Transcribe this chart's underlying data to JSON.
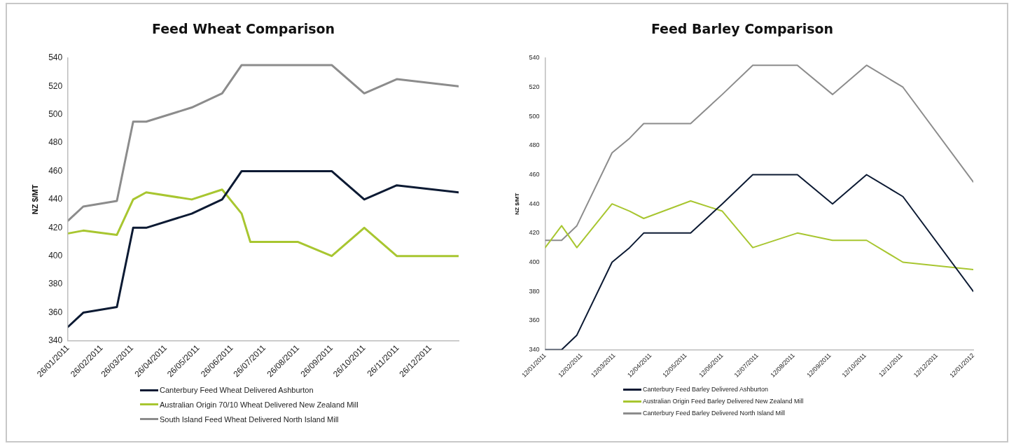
{
  "chart_data": [
    {
      "type": "line",
      "title": "Feed Wheat Comparison",
      "ylabel": "NZ $/MT",
      "x": [
        "2011-01-26",
        "2011-02-09",
        "2011-03-12",
        "2011-03-27",
        "2011-04-08",
        "2011-05-20",
        "2011-06-17",
        "2011-07-05",
        "2011-08-26",
        "2011-09-26",
        "2011-10-26",
        "2011-11-25",
        "2012-01-21"
      ],
      "xlim": [
        "2011-01-26",
        "2012-01-21"
      ],
      "xticks": [
        {
          "value": "2011-01-26",
          "label": "26/01/2011"
        },
        {
          "value": "2011-02-26",
          "label": "26/02/2011"
        },
        {
          "value": "2011-03-26",
          "label": "26/03/2011"
        },
        {
          "value": "2011-04-26",
          "label": "26/04/2011"
        },
        {
          "value": "2011-05-26",
          "label": "26/05/2011"
        },
        {
          "value": "2011-06-26",
          "label": "26/06/2011"
        },
        {
          "value": "2011-07-26",
          "label": "26/07/2011"
        },
        {
          "value": "2011-08-26",
          "label": "26/08/2011"
        },
        {
          "value": "2011-09-26",
          "label": "26/09/2011"
        },
        {
          "value": "2011-10-26",
          "label": "26/10/2011"
        },
        {
          "value": "2011-11-26",
          "label": "26/11/2011"
        },
        {
          "value": "2011-12-26",
          "label": "26/12/2011"
        }
      ],
      "ylim": [
        340,
        540
      ],
      "yticks": [
        340,
        360,
        380,
        400,
        420,
        440,
        460,
        480,
        500,
        520,
        540
      ],
      "legend": "bottom",
      "grid": false,
      "marker": "none",
      "series": [
        {
          "name": "Canterbury Feed Wheat Delivered Ashburton",
          "color": "#0c1a33",
          "values": [
            350,
            360,
            364,
            420,
            420,
            430,
            440,
            460,
            460,
            460,
            440,
            450,
            445
          ]
        },
        {
          "name": "Australian Origin 70/10 Wheat Delivered New Zealand Mill",
          "color": "#a8c630",
          "x": [
            "2011-01-26",
            "2011-02-09",
            "2011-03-12",
            "2011-03-27",
            "2011-04-08",
            "2011-05-20",
            "2011-06-17",
            "2011-07-05",
            "2011-07-13",
            "2011-08-26",
            "2011-09-26",
            "2011-10-26",
            "2011-11-25",
            "2012-01-21"
          ],
          "values": [
            416,
            418,
            415,
            440,
            445,
            440,
            447,
            430,
            410,
            410,
            400,
            420,
            400,
            400
          ]
        },
        {
          "name": "South Island Feed Wheat Delivered North Island Mill",
          "color": "#8c8c8c",
          "values": [
            425,
            435,
            439,
            495,
            495,
            505,
            515,
            535,
            535,
            535,
            515,
            525,
            520
          ]
        }
      ]
    },
    {
      "type": "line",
      "title": "Feed Barley Comparison",
      "ylabel": "NZ $/MT",
      "x": [
        "2011-01-12",
        "2011-01-26",
        "2011-02-08",
        "2011-03-10",
        "2011-03-25",
        "2011-04-06",
        "2011-05-16",
        "2011-06-12",
        "2011-07-08",
        "2011-08-15",
        "2011-09-14",
        "2011-10-13",
        "2011-11-13",
        "2012-01-12"
      ],
      "xlim": [
        "2011-01-12",
        "2012-01-12"
      ],
      "xticks": [
        {
          "value": "2011-01-12",
          "label": "12/01/2011"
        },
        {
          "value": "2011-02-12",
          "label": "12/02/2011"
        },
        {
          "value": "2011-03-12",
          "label": "12/03/2011"
        },
        {
          "value": "2011-04-12",
          "label": "12/04/2011"
        },
        {
          "value": "2011-05-12",
          "label": "12/05/2011"
        },
        {
          "value": "2011-06-12",
          "label": "12/06/2011"
        },
        {
          "value": "2011-07-12",
          "label": "12/07/2011"
        },
        {
          "value": "2011-08-12",
          "label": "12/08/2011"
        },
        {
          "value": "2011-09-12",
          "label": "12/09/2011"
        },
        {
          "value": "2011-10-12",
          "label": "12/10/2011"
        },
        {
          "value": "2011-11-12",
          "label": "12/11/2011"
        },
        {
          "value": "2011-12-12",
          "label": "12/12/2011"
        },
        {
          "value": "2012-01-12",
          "label": "12/01/2012"
        }
      ],
      "ylim": [
        340,
        540
      ],
      "yticks": [
        340,
        360,
        380,
        400,
        420,
        440,
        460,
        480,
        500,
        520,
        540
      ],
      "legend": "bottom",
      "grid": false,
      "marker": "none",
      "series": [
        {
          "name": "Canterbury Feed Barley Delivered Ashburton",
          "color": "#0c1a33",
          "values": [
            340,
            340,
            350,
            400,
            410,
            420,
            420,
            440,
            460,
            460,
            440,
            460,
            445,
            380
          ]
        },
        {
          "name": "Australian Origin Feed Barley Delivered New Zealand Mill",
          "color": "#a8c630",
          "values": [
            410,
            425,
            410,
            440,
            435,
            430,
            442,
            435,
            410,
            420,
            415,
            415,
            400,
            395
          ]
        },
        {
          "name": "Canterbury Feed Barley Delivered North Island Mill",
          "color": "#8c8c8c",
          "values": [
            415,
            415,
            425,
            475,
            485,
            495,
            495,
            515,
            535,
            535,
            515,
            535,
            520,
            455
          ]
        }
      ]
    }
  ]
}
